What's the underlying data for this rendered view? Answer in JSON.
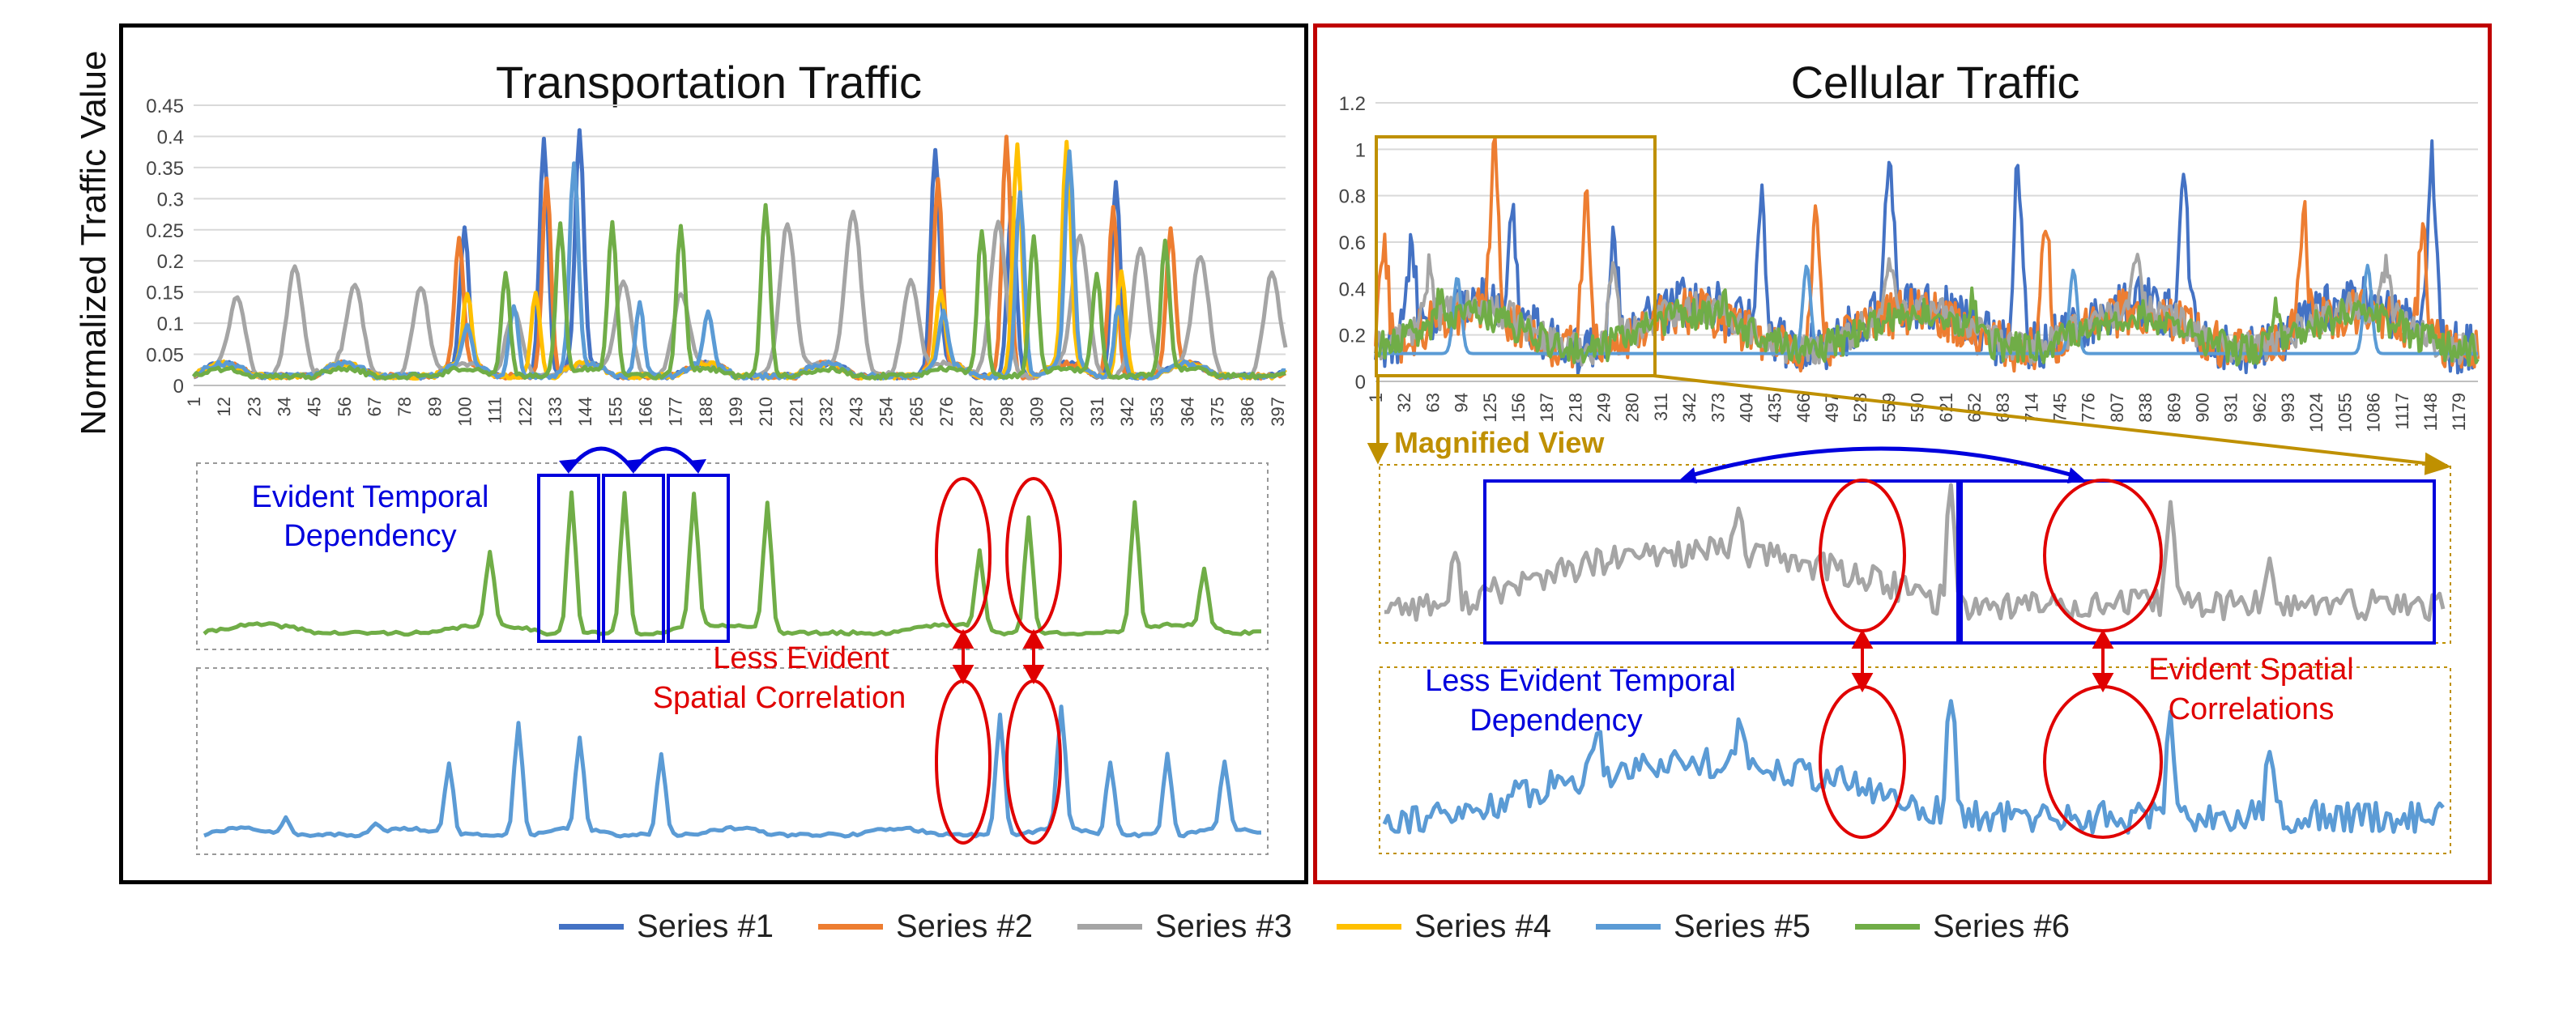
{
  "y_axis_label": "Normalized Traffic Value",
  "colors": {
    "series1": "#4472C4",
    "series2": "#ED7D31",
    "series3": "#A5A5A5",
    "series4": "#FFC000",
    "series5": "#5B9BD5",
    "series6": "#70AD47",
    "blue_annotation": "#0000DD",
    "red_annotation": "#E00000",
    "gold_annotation": "#BF9000",
    "left_frame": "#000000",
    "right_frame": "#C00000"
  },
  "legend": [
    "Series #1",
    "Series #2",
    "Series #3",
    "Series #4",
    "Series #5",
    "Series #6"
  ],
  "left_panel": {
    "title": "Transportation Traffic",
    "annotation_temporal": [
      "Evident Temporal",
      "Dependency"
    ],
    "annotation_spatial": [
      "Less Evident",
      "Spatial Correlation"
    ]
  },
  "right_panel": {
    "title": "Cellular Traffic",
    "annotation_magnified": "Magnified View",
    "annotation_temporal": [
      "Less Evident Temporal",
      "Dependency"
    ],
    "annotation_spatial": [
      "Evident Spatial",
      "Correlations"
    ]
  },
  "chart_data": [
    {
      "type": "line",
      "title": "Transportation Traffic",
      "ylabel": "Normalized Traffic Value",
      "ylim": [
        0,
        0.45
      ],
      "yticks": [
        "0",
        "0.05",
        "0.1",
        "0.15",
        "0.2",
        "0.25",
        "0.3",
        "0.35",
        "0.4",
        "0.45"
      ],
      "xticks": [
        "1",
        "12",
        "23",
        "34",
        "45",
        "56",
        "67",
        "78",
        "89",
        "100",
        "111",
        "122",
        "133",
        "144",
        "155",
        "166",
        "177",
        "188",
        "199",
        "210",
        "221",
        "232",
        "243",
        "254",
        "265",
        "276",
        "287",
        "298",
        "309",
        "320",
        "331",
        "342",
        "353",
        "364",
        "375",
        "386",
        "397"
      ],
      "x_range": [
        1,
        400
      ],
      "grid": true,
      "series": [
        {
          "name": "Series #1",
          "peaks": [
            [
              100,
              0.25
            ],
            [
              129,
              0.4
            ],
            [
              142,
              0.41
            ],
            [
              272,
              0.38
            ],
            [
              300,
              0.3
            ],
            [
              338,
              0.33
            ]
          ]
        },
        {
          "name": "Series #2",
          "peaks": [
            [
              98,
              0.24
            ],
            [
              130,
              0.33
            ],
            [
              273,
              0.33
            ],
            [
              298,
              0.4
            ],
            [
              337,
              0.29
            ],
            [
              358,
              0.25
            ]
          ]
        },
        {
          "name": "Series #3",
          "peaks": [
            [
              17,
              0.14
            ],
            [
              38,
              0.19
            ],
            [
              60,
              0.16
            ],
            [
              84,
              0.16
            ],
            [
              118,
              0.12
            ],
            [
              158,
              0.17
            ],
            [
              179,
              0.15
            ],
            [
              218,
              0.26
            ],
            [
              242,
              0.28
            ],
            [
              263,
              0.17
            ],
            [
              295,
              0.26
            ],
            [
              325,
              0.24
            ],
            [
              347,
              0.22
            ],
            [
              369,
              0.21
            ],
            [
              395,
              0.18
            ]
          ]
        },
        {
          "name": "Series #4",
          "peaks": [
            [
              101,
              0.15
            ],
            [
              126,
              0.15
            ],
            [
              274,
              0.15
            ],
            [
              302,
              0.39
            ],
            [
              320,
              0.39
            ],
            [
              340,
              0.18
            ]
          ]
        },
        {
          "name": "Series #5",
          "peaks": [
            [
              101,
              0.1
            ],
            [
              118,
              0.13
            ],
            [
              140,
              0.36
            ],
            [
              164,
              0.13
            ],
            [
              189,
              0.12
            ],
            [
              275,
              0.12
            ],
            [
              303,
              0.31
            ],
            [
              321,
              0.38
            ],
            [
              339,
              0.13
            ]
          ]
        },
        {
          "name": "Series #6",
          "peaks": [
            [
              115,
              0.18
            ],
            [
              135,
              0.26
            ],
            [
              154,
              0.26
            ],
            [
              179,
              0.26
            ],
            [
              210,
              0.29
            ],
            [
              289,
              0.25
            ],
            [
              308,
              0.24
            ],
            [
              331,
              0.18
            ],
            [
              356,
              0.23
            ]
          ]
        }
      ]
    },
    {
      "type": "line",
      "title": "Cellular Traffic",
      "ylim": [
        0,
        1.2
      ],
      "yticks": [
        "0",
        "0.2",
        "0.4",
        "0.6",
        "0.8",
        "1",
        "1.2"
      ],
      "xticks": [
        "1",
        "32",
        "63",
        "94",
        "125",
        "156",
        "187",
        "218",
        "249",
        "280",
        "311",
        "342",
        "373",
        "404",
        "435",
        "466",
        "497",
        "528",
        "559",
        "590",
        "621",
        "652",
        "683",
        "714",
        "745",
        "776",
        "807",
        "838",
        "869",
        "900",
        "931",
        "962",
        "993",
        "1024",
        "1055",
        "1086",
        "1117",
        "1148",
        "1179"
      ],
      "x_range": [
        1,
        1200
      ],
      "grid": true,
      "series": [
        {
          "name": "Series #1",
          "peaks": [
            [
              40,
              0.6
            ],
            [
              150,
              0.75
            ],
            [
              260,
              0.6
            ],
            [
              420,
              0.8
            ],
            [
              560,
              0.95
            ],
            [
              700,
              0.95
            ],
            [
              880,
              0.9
            ],
            [
              1150,
              0.98
            ]
          ]
        },
        {
          "name": "Series #2",
          "peaks": [
            [
              10,
              0.63
            ],
            [
              130,
              1.0
            ],
            [
              230,
              0.8
            ],
            [
              480,
              0.72
            ],
            [
              730,
              0.7
            ],
            [
              1010,
              0.72
            ],
            [
              1140,
              0.6
            ]
          ]
        },
        {
          "name": "Series #3",
          "peaks": [
            [
              60,
              0.5
            ],
            [
              260,
              0.55
            ],
            [
              560,
              0.5
            ],
            [
              830,
              0.55
            ],
            [
              1100,
              0.52
            ]
          ]
        },
        {
          "name": "Series #5",
          "peaks": [
            [
              90,
              0.45
            ],
            [
              470,
              0.5
            ],
            [
              760,
              0.48
            ],
            [
              1080,
              0.5
            ]
          ]
        },
        {
          "name": "Series #6",
          "peaks": [
            [
              70,
              0.35
            ],
            [
              380,
              0.35
            ],
            [
              650,
              0.35
            ],
            [
              980,
              0.35
            ]
          ]
        }
      ]
    }
  ]
}
